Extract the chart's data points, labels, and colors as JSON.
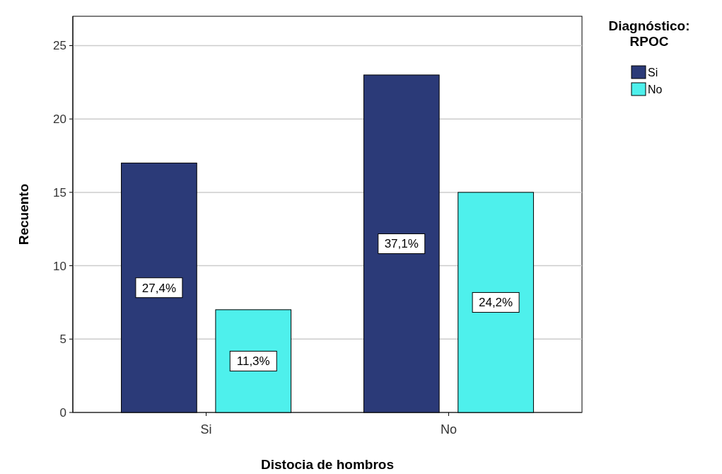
{
  "chart_data": {
    "type": "bar",
    "xlabel": "Distocia de hombros",
    "ylabel": "Recuento",
    "legend_title": "Diagnóstico: RPOC",
    "categories": [
      "Si",
      "No"
    ],
    "series": [
      {
        "name": "Si",
        "color": "#2b3a78",
        "values": [
          17,
          23
        ]
      },
      {
        "name": "No",
        "color": "#4ef0ec",
        "values": [
          7,
          15
        ]
      }
    ],
    "annotations": [
      "27,4%",
      "11,3%",
      "37,1%",
      "24,2%"
    ],
    "ylim": [
      0,
      27
    ],
    "yticks": [
      0,
      5,
      10,
      15,
      20,
      25
    ],
    "grid": "y",
    "legend": "top right"
  }
}
